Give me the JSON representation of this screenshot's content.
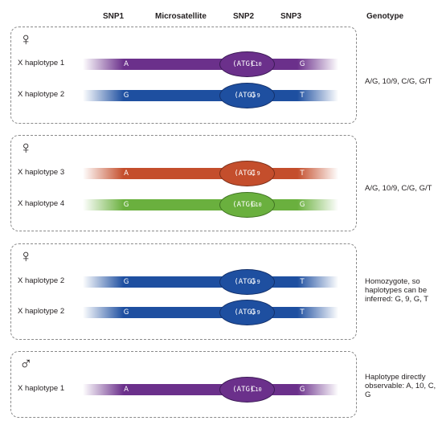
{
  "header": {
    "snp1": "SNP1",
    "microsatellite": "Microsatellite",
    "snp2": "SNP2",
    "snp3": "SNP3",
    "genotype": "Genotype"
  },
  "colors": {
    "purple": "#6b308b",
    "blue": "#1e4fa0",
    "red": "#c44e2c",
    "green": "#6ab03e"
  },
  "ms_prefix": "(ATG)",
  "panels": [
    {
      "symbol": "♀",
      "genotype": "A/G, 10/9, C/G, G/T",
      "haplotypes": [
        {
          "label": "X haplotype  1",
          "snp1": "A",
          "repeat": "10",
          "snp2": "C",
          "snp3": "G",
          "color": "purple"
        },
        {
          "label": "X haplotype  2",
          "snp1": "G",
          "repeat": "9",
          "snp2": "G",
          "snp3": "T",
          "color": "blue"
        }
      ]
    },
    {
      "symbol": "♀",
      "genotype": "A/G, 10/9, C/G, G/T",
      "haplotypes": [
        {
          "label": "X haplotype  3",
          "snp1": "A",
          "repeat": "9",
          "snp2": "C",
          "snp3": "T",
          "color": "red"
        },
        {
          "label": "X haplotype  4",
          "snp1": "G",
          "repeat": "10",
          "snp2": "G",
          "snp3": "G",
          "color": "green"
        }
      ]
    },
    {
      "symbol": "♀",
      "genotype": "Homozygote, so haplotypes can be inferred: G, 9, G, T",
      "haplotypes": [
        {
          "label": "X haplotype  2",
          "snp1": "G",
          "repeat": "9",
          "snp2": "G",
          "snp3": "T",
          "color": "blue"
        },
        {
          "label": "X haplotype  2",
          "snp1": "G",
          "repeat": "9",
          "snp2": "G",
          "snp3": "T",
          "color": "blue"
        }
      ]
    },
    {
      "symbol": "♂",
      "genotype": "Haplotype directly observable: A, 10, C, G",
      "haplotypes": [
        {
          "label": "X haplotype  1",
          "snp1": "A",
          "repeat": "10",
          "snp2": "C",
          "snp3": "G",
          "color": "purple"
        }
      ]
    }
  ]
}
